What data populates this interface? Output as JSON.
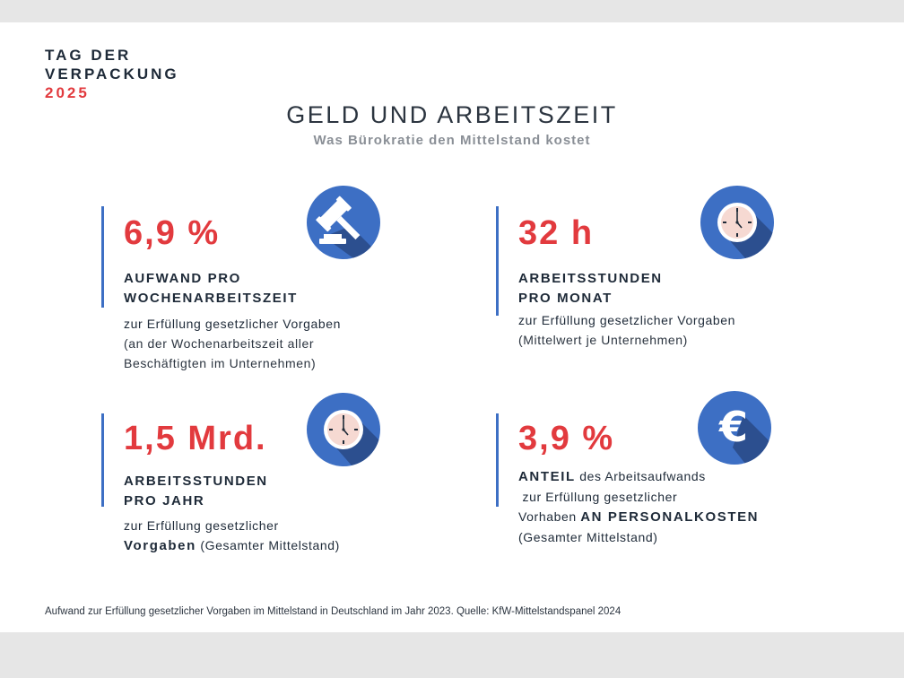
{
  "brand": {
    "line1": "TAG DER",
    "line2": "VERPACKUNG",
    "year": "2025"
  },
  "title": "GELD UND ARBEITSZEIT",
  "subtitle": "Was Bürokratie den Mittelstand kostet",
  "cards": [
    {
      "value": "6,9 %",
      "heading_lines": [
        "AUFWAND PRO",
        "WOCHENARBEITSZEIT"
      ],
      "body": "zur Erfüllung gesetzlicher Vorgaben",
      "note_lines": [
        "(an der Wochenarbeitszeit aller",
        "Beschäftigten im Unternehmen)"
      ],
      "icon": "gavel-icon"
    },
    {
      "value": "32 h",
      "heading_lines": [
        "ARBEITSSTUNDEN",
        "PRO MONAT"
      ],
      "body": "zur Erfüllung gesetzlicher Vorgaben",
      "note_lines": [
        "(Mittelwert je Unternehmen)"
      ],
      "icon": "clock-icon"
    },
    {
      "value": "1,5 Mrd.",
      "heading_lines": [
        "ARBEITSSTUNDEN",
        "PRO JAHR"
      ],
      "body": "zur Erfüllung gesetzlicher",
      "body2_strong": "Vorgaben",
      "note_lines": [
        "(Gesamter Mittelstand)"
      ],
      "icon": "clock-icon"
    },
    {
      "value": "3,9 %",
      "line1_strong": "ANTEIL",
      "line1_rest": " des Arbeitsaufwands",
      "line2": " zur Erfüllung gesetzlicher",
      "line3_rest": "Vorhaben ",
      "line3_strong": "AN PERSONALKOSTEN",
      "note_lines": [
        "(Gesamter Mittelstand)"
      ],
      "icon": "euro-icon"
    }
  ],
  "footer": "Aufwand zur Erfüllung gesetzlicher Vorgaben im Mittelstand in Deutschland im Jahr 2023. Quelle: KfW-Mittelstandspanel 2024",
  "colors": {
    "accent_red": "#e23a3e",
    "icon_blue": "#3d6fc4",
    "shadow_blue": "#2c4f8f",
    "clock_face": "#f6d9d2",
    "text_dark": "#1e2a38",
    "subtitle_gray": "#8a8f96",
    "background": "#e6e6e6"
  }
}
